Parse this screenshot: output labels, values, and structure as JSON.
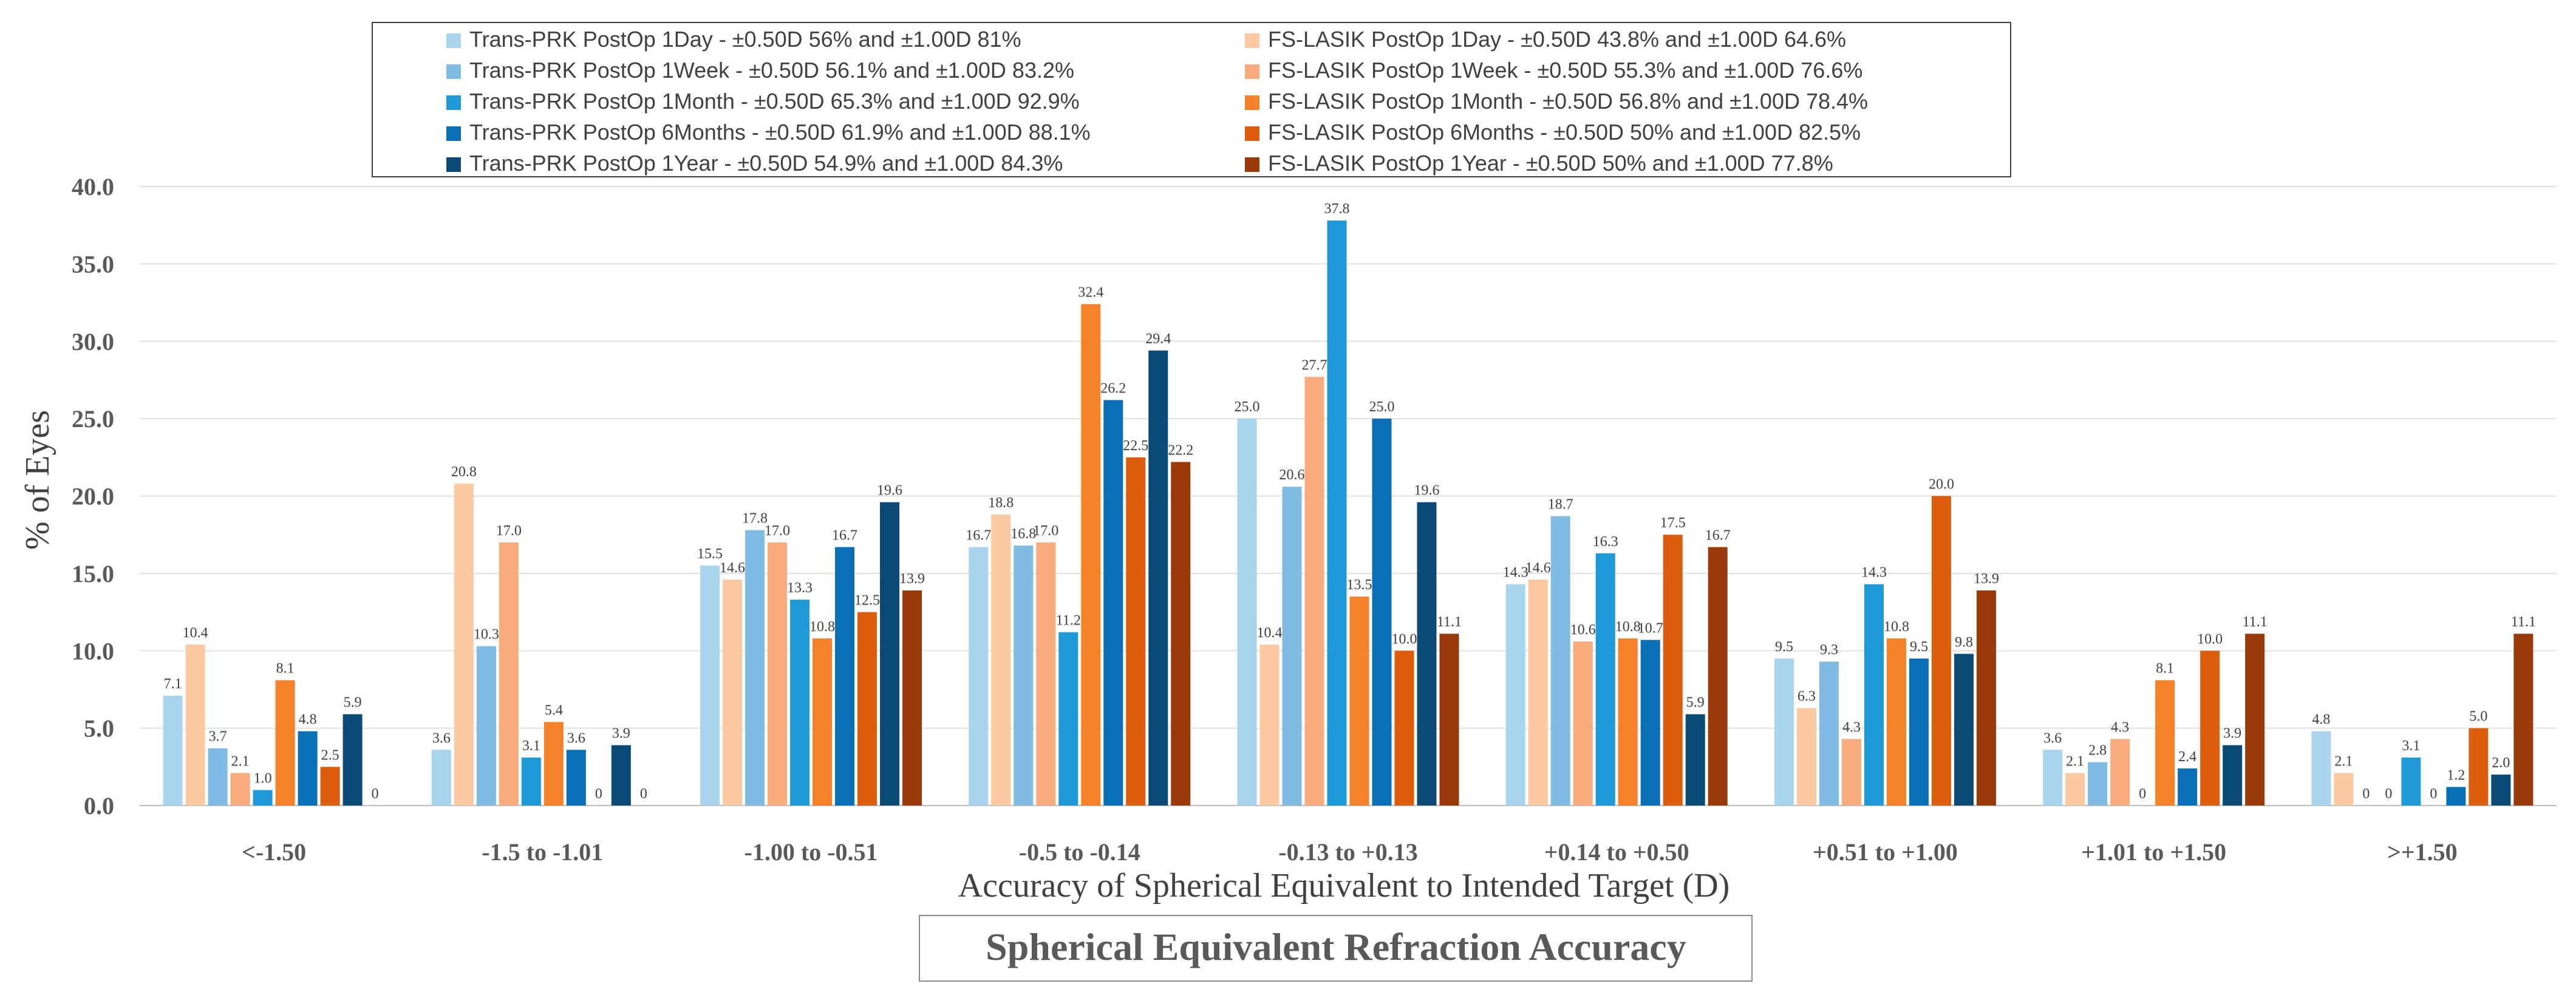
{
  "chart_data": {
    "type": "bar",
    "title": "Spherical Equivalent Refraction Accuracy",
    "xlabel": "Accuracy of Spherical Equivalent to Intended Target (D)",
    "ylabel": "% of Eyes",
    "ylim": [
      0,
      40
    ],
    "yticks": [
      "0.0",
      "5.0",
      "10.0",
      "15.0",
      "20.0",
      "25.0",
      "30.0",
      "35.0",
      "40.0"
    ],
    "grid": true,
    "legend_position": "top",
    "categories": [
      "<-1.50",
      "-1.5 to -1.01",
      "-1.00 to -0.51",
      "-0.5 to -0.14",
      "-0.13 to +0.13",
      "+0.14 to +0.50",
      "+0.51 to +1.00",
      "+1.01 to +1.50",
      ">+1.50"
    ],
    "series": [
      {
        "name": "Trans-PRK PostOp 1Day - ±0.50D 56% and ±1.00D 81%",
        "color": "#a9d4ee",
        "values": [
          7.1,
          3.6,
          15.5,
          16.7,
          25.0,
          14.3,
          9.5,
          3.6,
          4.8
        ],
        "labels": [
          "7.1",
          "3.6",
          "15.5",
          "16.7",
          "25.0",
          "14.3",
          "9.5",
          "3.6",
          "4.8"
        ]
      },
      {
        "name": "FS-LASIK PostOp 1Day - ±0.50D 43.8% and ±1.00D 64.6%",
        "color": "#fcc9a3",
        "values": [
          10.4,
          20.8,
          14.6,
          18.8,
          10.4,
          14.6,
          6.3,
          2.1,
          2.1
        ],
        "labels": [
          "10.4",
          "20.8",
          "14.6",
          "18.8",
          "10.4",
          "14.6",
          "6.3",
          "2.1",
          "2.1"
        ]
      },
      {
        "name": "Trans-PRK PostOp 1Week - ±0.50D 56.1% and ±1.00D 83.2%",
        "color": "#7fbbe3",
        "values": [
          3.7,
          10.3,
          17.8,
          16.8,
          20.6,
          18.7,
          9.3,
          2.8,
          0
        ],
        "labels": [
          "3.7",
          "10.3",
          "17.8",
          "16.8",
          "20.6",
          "18.7",
          "9.3",
          "2.8",
          "0"
        ]
      },
      {
        "name": "FS-LASIK PostOp 1Week - ±0.50D 55.3% and ±1.00D 76.6%",
        "color": "#f8ab7d",
        "values": [
          2.1,
          17.0,
          17.0,
          17.0,
          27.7,
          10.6,
          4.3,
          4.3,
          0
        ],
        "labels": [
          "2.1",
          "17.0",
          "17.0",
          "17.0",
          "27.7",
          "10.6",
          "4.3",
          "4.3",
          "0"
        ]
      },
      {
        "name": "Trans-PRK PostOp 1Month - ±0.50D 65.3% and ±1.00D 92.9%",
        "color": "#1e9ad9",
        "values": [
          1.0,
          3.1,
          13.3,
          11.2,
          37.8,
          16.3,
          14.3,
          0,
          3.1
        ],
        "labels": [
          "1.0",
          "3.1",
          "13.3",
          "11.2",
          "37.8",
          "16.3",
          "14.3",
          "0",
          "3.1"
        ]
      },
      {
        "name": "FS-LASIK PostOp 1Month - ±0.50D 56.8% and ±1.00D 78.4%",
        "color": "#f5822a",
        "values": [
          8.1,
          5.4,
          10.8,
          32.4,
          13.5,
          10.8,
          10.8,
          8.1,
          0
        ],
        "labels": [
          "8.1",
          "5.4",
          "10.8",
          "32.4",
          "13.5",
          "10.8",
          "10.8",
          "8.1",
          "0"
        ]
      },
      {
        "name": "Trans-PRK PostOp 6Months - ±0.50D 61.9% and ±1.00D 88.1%",
        "color": "#0a6fb6",
        "values": [
          4.8,
          3.6,
          16.7,
          26.2,
          25.0,
          10.7,
          9.5,
          2.4,
          1.2
        ],
        "labels": [
          "4.8",
          "3.6",
          "16.7",
          "26.2",
          "25.0",
          "10.7",
          "9.5",
          "2.4",
          "1.2"
        ]
      },
      {
        "name": "FS-LASIK PostOp 6Months - ±0.50D 50% and ±1.00D 82.5%",
        "color": "#dd5c0e",
        "values": [
          2.5,
          0,
          12.5,
          22.5,
          10.0,
          17.5,
          20.0,
          10.0,
          5.0
        ],
        "labels": [
          "2.5",
          "0",
          "12.5",
          "22.5",
          "10.0",
          "17.5",
          "20.0",
          "10.0",
          "5.0"
        ]
      },
      {
        "name": "Trans-PRK PostOp 1Year - ±0.50D 54.9% and ±1.00D 84.3%",
        "color": "#0b4a77",
        "values": [
          5.9,
          3.9,
          19.6,
          29.4,
          19.6,
          5.9,
          9.8,
          3.9,
          2.0
        ],
        "labels": [
          "5.9",
          "3.9",
          "19.6",
          "29.4",
          "19.6",
          "5.9",
          "9.8",
          "3.9",
          "2.0"
        ]
      },
      {
        "name": "FS-LASIK PostOp 1Year - ±0.50D 50% and ±1.00D 77.8%",
        "color": "#9a3a0a",
        "values": [
          0,
          0,
          13.9,
          22.2,
          11.1,
          16.7,
          13.9,
          11.1,
          11.1
        ],
        "labels": [
          "0",
          "0",
          "13.9",
          "22.2",
          "11.1",
          "16.7",
          "13.9",
          "11.1",
          "11.1"
        ]
      }
    ]
  }
}
